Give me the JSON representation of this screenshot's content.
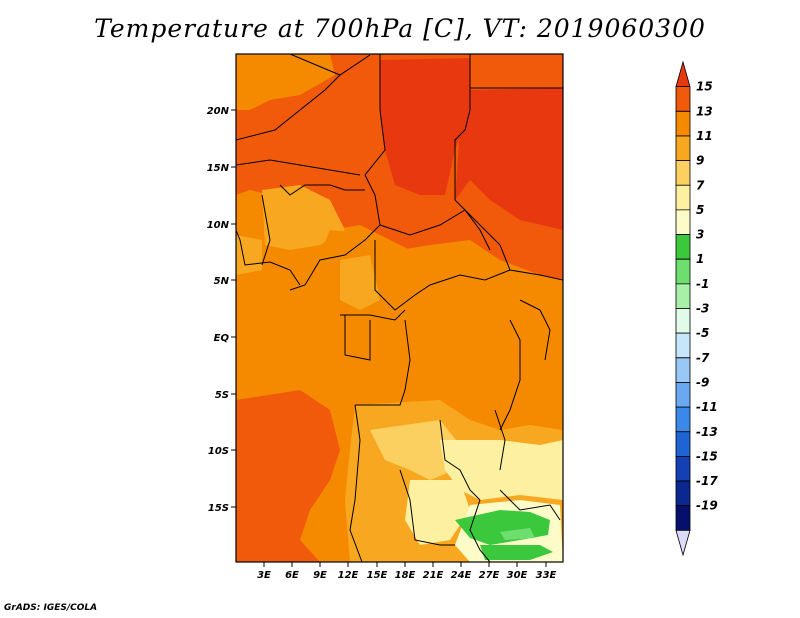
{
  "title": "Temperature at 700hPa [C], VT: 2019060300",
  "credit": "GrADS: IGES/COLA",
  "map": {
    "variable": "Temperature at 700hPa",
    "units": "C",
    "valid_time": "2019060300",
    "lat_labels": [
      "20N",
      "15N",
      "10N",
      "5N",
      "EQ",
      "5S",
      "10S",
      "15S"
    ],
    "lon_labels": [
      "3E",
      "6E",
      "9E",
      "12E",
      "15E",
      "18E",
      "21E",
      "24E",
      "27E",
      "30E",
      "33E"
    ]
  },
  "colorbar": {
    "labels": [
      "15",
      "13",
      "11",
      "9",
      "7",
      "5",
      "3",
      "1",
      "-1",
      "-3",
      "-5",
      "-7",
      "-9",
      "-11",
      "-13",
      "-15",
      "-17",
      "-19"
    ],
    "colors": [
      "#e8380f",
      "#f05a0a",
      "#f58a00",
      "#f8a820",
      "#fbd060",
      "#fdf0a0",
      "#fdfcc8",
      "#3cc83c",
      "#6ede6e",
      "#a8f0a8",
      "#e2fbe8",
      "#c8e6fa",
      "#98c8f5",
      "#6aa8f0",
      "#3c88e8",
      "#1e64d2",
      "#1440b4",
      "#0a2890",
      "#06106c",
      "#dcdcf8"
    ]
  }
}
